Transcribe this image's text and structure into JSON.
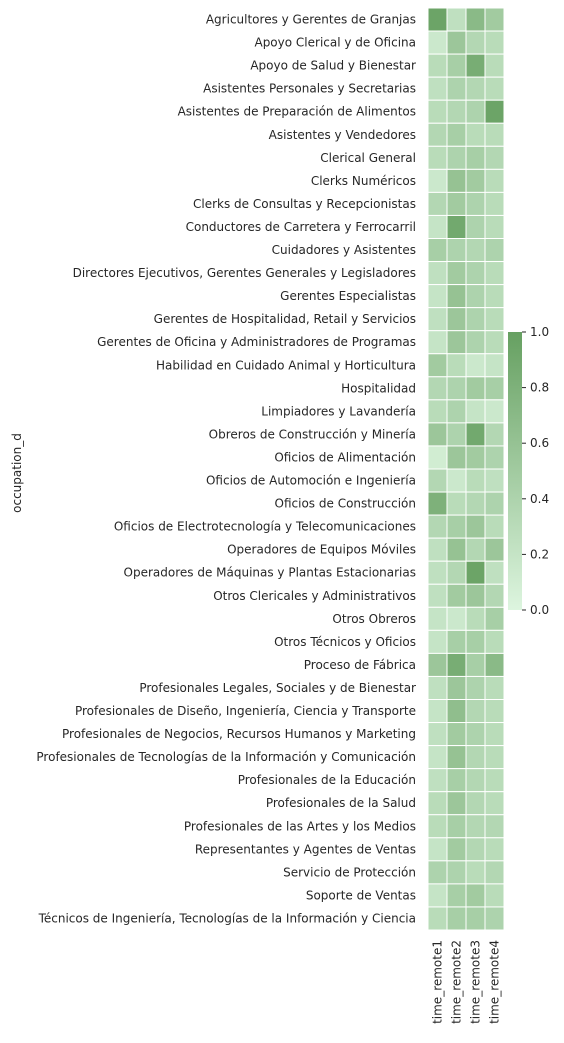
{
  "chart_data": {
    "type": "heatmap",
    "ylabel": "occupation_d",
    "xlabel": "",
    "columns": [
      "time_remote1",
      "time_remote2",
      "time_remote3",
      "time_remote4"
    ],
    "rows": [
      "Agricultores y Gerentes de Granjas",
      "Apoyo Clerical y de Oficina",
      "Apoyo de Salud y Bienestar",
      "Asistentes Personales y Secretarias",
      "Asistentes de Preparación de Alimentos",
      "Asistentes y Vendedores",
      "Clerical General",
      "Clerks Numéricos",
      "Clerks de Consultas y Recepcionistas",
      "Conductores de Carretera y Ferrocarril",
      "Cuidadores y Asistentes",
      "Directores Ejecutivos, Gerentes Generales y Legisladores",
      "Gerentes Especialistas",
      "Gerentes de Hospitalidad, Retail y Servicios",
      "Gerentes de Oficina y Administradores de Programas",
      "Habilidad en Cuidado Animal y Horticultura",
      "Hospitalidad",
      "Limpiadores y Lavandería",
      "Obreros de Construcción y Minería",
      "Oficios de Alimentación",
      "Oficios de Automoción e Ingeniería",
      "Oficios de Construcción",
      "Oficios de Electrotecnología y Telecomunicaciones",
      "Operadores de Equipos Móviles",
      "Operadores de Máquinas y Plantas Estacionarias",
      "Otros Clericales y Administrativos",
      "Otros Obreros",
      "Otros Técnicos y Oficios",
      "Proceso de Fábrica",
      "Profesionales Legales, Sociales y de Bienestar",
      "Profesionales de Diseño, Ingeniería, Ciencia y Transporte",
      "Profesionales de Negocios, Recursos Humanos y Marketing",
      "Profesionales de Tecnologías de la Información y Comunicación",
      "Profesionales de la Educación",
      "Profesionales de la Salud",
      "Profesionales de las Artes y los Medios",
      "Representantes y Agentes de Ventas",
      "Servicio de Protección",
      "Soporte de Ventas",
      "Técnicos de Ingeniería, Tecnologías de la Información y Ciencia"
    ],
    "values": [
      [
        0.95,
        0.25,
        0.7,
        0.5
      ],
      [
        0.15,
        0.55,
        0.35,
        0.3
      ],
      [
        0.3,
        0.45,
        0.85,
        0.3
      ],
      [
        0.25,
        0.4,
        0.35,
        0.3
      ],
      [
        0.3,
        0.35,
        0.4,
        0.95
      ],
      [
        0.35,
        0.45,
        0.3,
        0.3
      ],
      [
        0.3,
        0.4,
        0.45,
        0.35
      ],
      [
        0.15,
        0.6,
        0.5,
        0.3
      ],
      [
        0.35,
        0.5,
        0.4,
        0.3
      ],
      [
        0.2,
        0.9,
        0.4,
        0.3
      ],
      [
        0.45,
        0.4,
        0.35,
        0.4
      ],
      [
        0.25,
        0.5,
        0.4,
        0.3
      ],
      [
        0.2,
        0.6,
        0.4,
        0.3
      ],
      [
        0.25,
        0.55,
        0.4,
        0.3
      ],
      [
        0.2,
        0.55,
        0.4,
        0.3
      ],
      [
        0.5,
        0.3,
        0.15,
        0.2
      ],
      [
        0.35,
        0.4,
        0.5,
        0.45
      ],
      [
        0.3,
        0.4,
        0.2,
        0.15
      ],
      [
        0.55,
        0.4,
        0.9,
        0.35
      ],
      [
        0.1,
        0.55,
        0.5,
        0.4
      ],
      [
        0.35,
        0.15,
        0.3,
        0.25
      ],
      [
        0.8,
        0.3,
        0.35,
        0.4
      ],
      [
        0.35,
        0.45,
        0.55,
        0.3
      ],
      [
        0.25,
        0.6,
        0.35,
        0.55
      ],
      [
        0.25,
        0.35,
        0.95,
        0.25
      ],
      [
        0.25,
        0.5,
        0.55,
        0.35
      ],
      [
        0.2,
        0.15,
        0.3,
        0.45
      ],
      [
        0.2,
        0.45,
        0.45,
        0.3
      ],
      [
        0.55,
        0.85,
        0.45,
        0.7
      ],
      [
        0.25,
        0.55,
        0.4,
        0.3
      ],
      [
        0.2,
        0.65,
        0.35,
        0.3
      ],
      [
        0.25,
        0.5,
        0.4,
        0.3
      ],
      [
        0.2,
        0.6,
        0.35,
        0.3
      ],
      [
        0.25,
        0.45,
        0.35,
        0.3
      ],
      [
        0.3,
        0.55,
        0.35,
        0.3
      ],
      [
        0.3,
        0.45,
        0.35,
        0.35
      ],
      [
        0.2,
        0.5,
        0.35,
        0.3
      ],
      [
        0.4,
        0.4,
        0.3,
        0.35
      ],
      [
        0.2,
        0.45,
        0.5,
        0.3
      ],
      [
        0.3,
        0.45,
        0.45,
        0.4
      ]
    ],
    "colorbar": {
      "min": 0.0,
      "max": 1.0,
      "ticks": [
        "0.0",
        "0.2",
        "0.4",
        "0.6",
        "0.8",
        "1.0"
      ],
      "color_low": "#ddf5df",
      "color_high": "#66a061"
    }
  }
}
